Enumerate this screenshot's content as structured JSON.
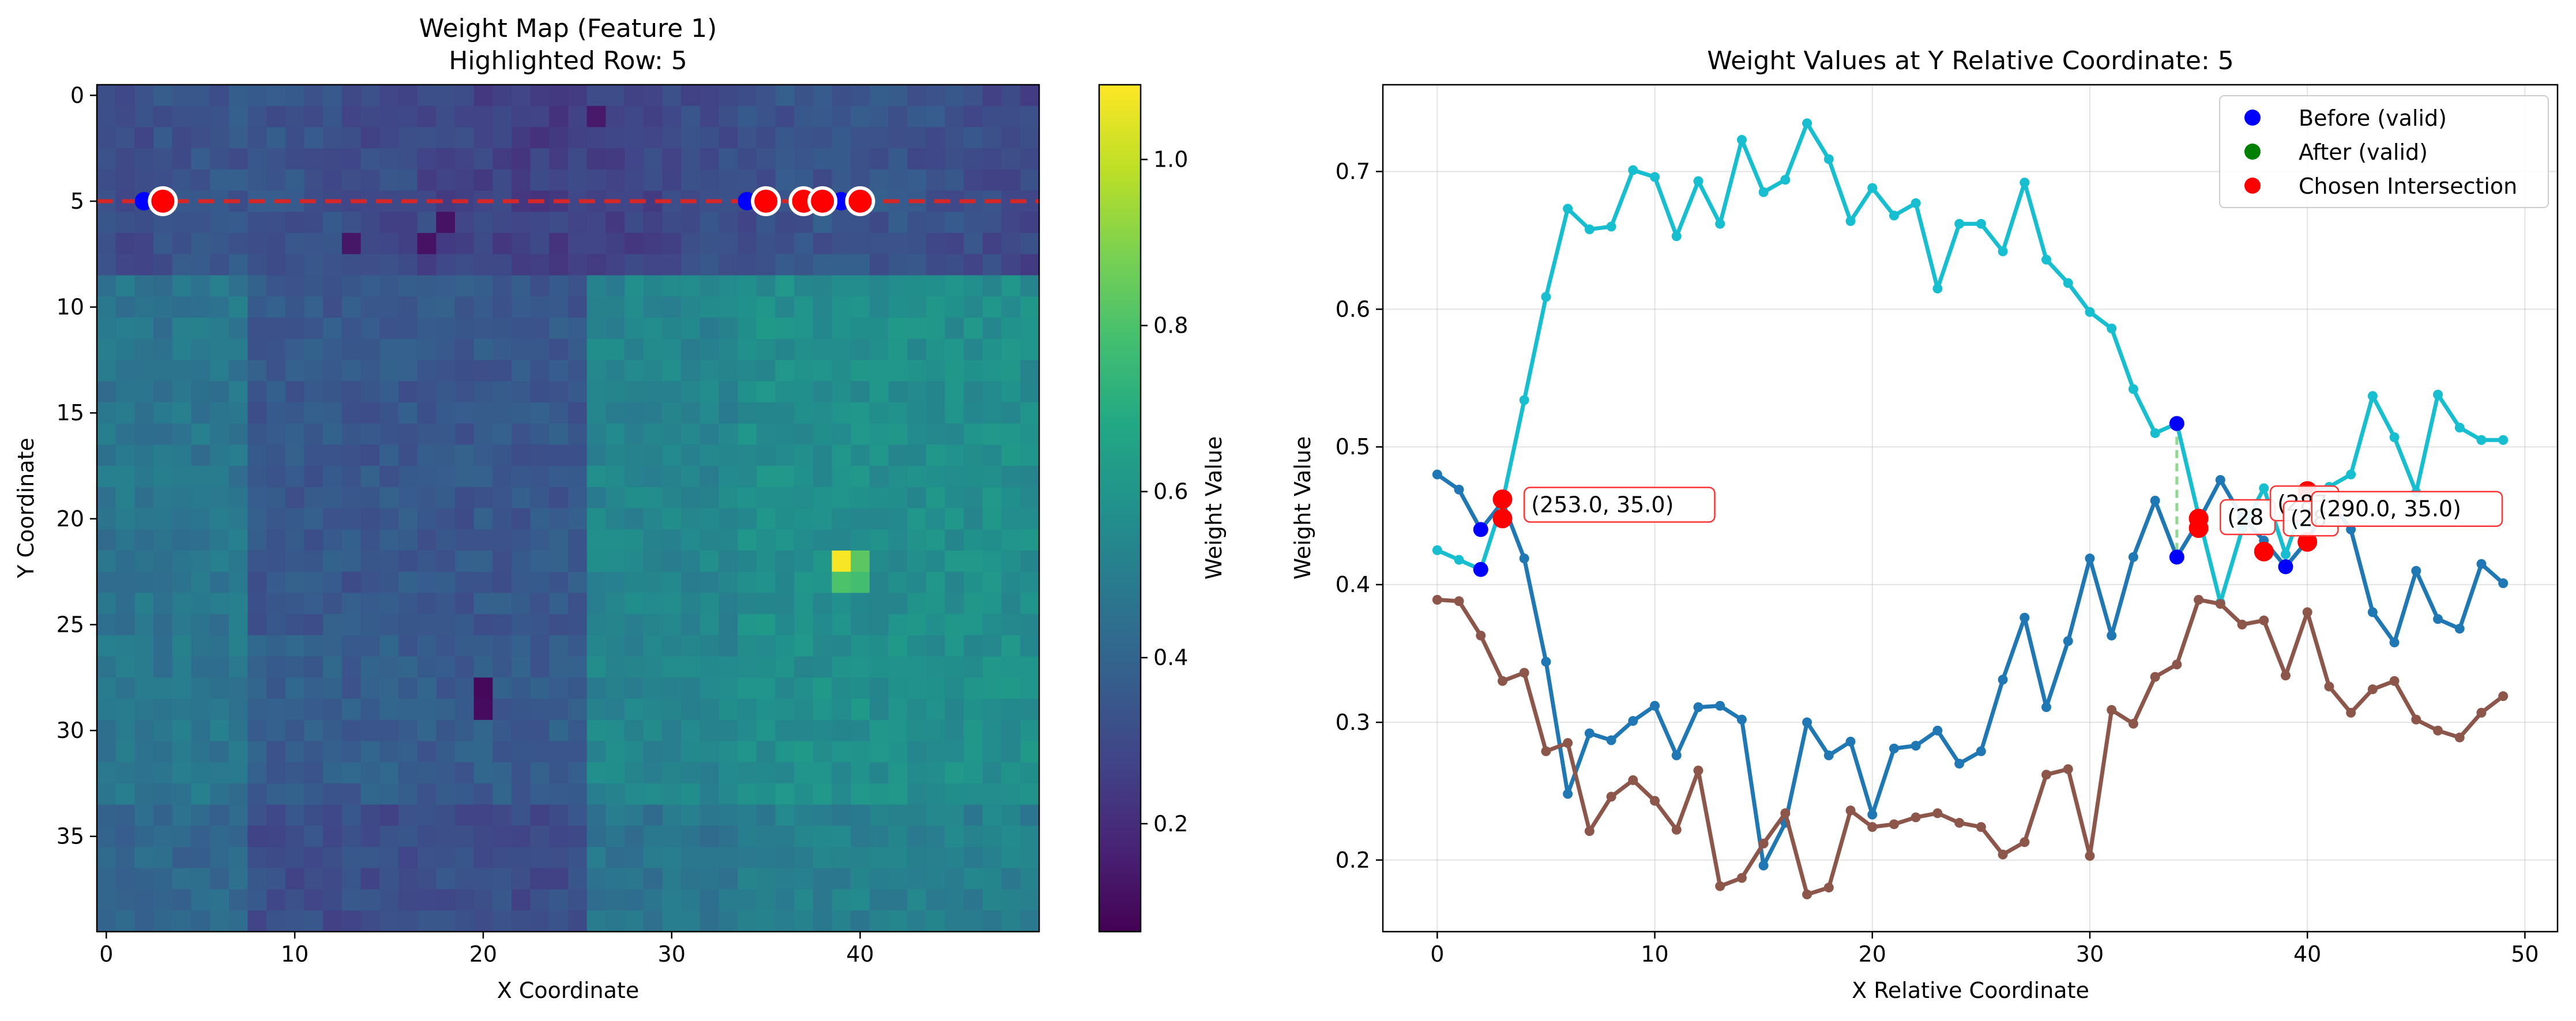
{
  "chart_data": [
    {
      "type": "heatmap",
      "title": "Weight Map (Feature 1)",
      "subtitle": "Highlighted Row: 5",
      "xlabel": "X Coordinate",
      "ylabel": "Y Coordinate",
      "colorbar_label": "Weight Value",
      "colormap": "viridis",
      "xlim": [
        -0.5,
        49.5
      ],
      "ylim": [
        39.5,
        -0.5
      ],
      "xticks": [
        0,
        10,
        20,
        30,
        40
      ],
      "yticks": [
        0,
        5,
        10,
        15,
        20,
        25,
        30,
        35
      ],
      "colorbar_range": [
        0.07,
        1.09
      ],
      "colorbar_ticks": [
        0.2,
        0.4,
        0.6,
        0.8,
        1.0
      ],
      "highlight_row": 5,
      "highlight_line_color": "#d62728",
      "blue_markers_x": [
        2,
        34,
        39
      ],
      "red_markers_x": [
        3,
        35,
        37,
        38,
        40
      ],
      "hot_cells": [
        {
          "x": 39,
          "y": 22,
          "v": 1.08
        },
        {
          "x": 40,
          "y": 22,
          "v": 0.83
        },
        {
          "x": 39,
          "y": 23,
          "v": 0.8
        },
        {
          "x": 40,
          "y": 23,
          "v": 0.78
        },
        {
          "x": 20,
          "y": 28,
          "v": 0.09
        },
        {
          "x": 20,
          "y": 29,
          "v": 0.1
        },
        {
          "x": 18,
          "y": 6,
          "v": 0.12
        },
        {
          "x": 17,
          "y": 7,
          "v": 0.12
        },
        {
          "x": 13,
          "y": 7,
          "v": 0.13
        },
        {
          "x": 26,
          "y": 1,
          "v": 0.14
        }
      ]
    },
    {
      "type": "line",
      "title": "Weight Values at Y Relative Coordinate: 5",
      "xlabel": "X Relative Coordinate",
      "ylabel": "Weight Value",
      "xlim": [
        -2.5,
        51.5
      ],
      "ylim": [
        0.148,
        0.763
      ],
      "xticks": [
        0,
        10,
        20,
        30,
        40,
        50
      ],
      "yticks": [
        0.2,
        0.3,
        0.4,
        0.5,
        0.6,
        0.7
      ],
      "grid": true,
      "legend_position": "top-right",
      "legend": [
        {
          "label": "Before (valid)",
          "color": "#0000ff"
        },
        {
          "label": "After (valid)",
          "color": "#008000"
        },
        {
          "label": "Chosen Intersection",
          "color": "#ff0000"
        }
      ],
      "series": [
        {
          "color": "#1f77b4",
          "x": [
            0,
            1,
            2,
            3,
            4,
            5,
            6,
            7,
            8,
            9,
            10,
            11,
            12,
            13,
            14,
            15,
            16,
            17,
            18,
            19,
            20,
            21,
            22,
            23,
            24,
            25,
            26,
            27,
            28,
            29,
            30,
            31,
            32,
            33,
            34,
            35,
            36,
            37,
            38,
            39,
            40,
            41,
            42,
            43,
            44,
            45,
            46,
            47,
            48,
            49
          ],
          "values": [
            0.48,
            0.469,
            0.44,
            0.46,
            0.419,
            0.344,
            0.248,
            0.292,
            0.287,
            0.301,
            0.312,
            0.276,
            0.311,
            0.312,
            0.302,
            0.196,
            0.227,
            0.3,
            0.276,
            0.286,
            0.233,
            0.281,
            0.283,
            0.294,
            0.27,
            0.279,
            0.331,
            0.376,
            0.311,
            0.359,
            0.419,
            0.363,
            0.42,
            0.461,
            0.42,
            0.446,
            0.476,
            0.449,
            0.432,
            0.413,
            0.432,
            0.461,
            0.44,
            0.38,
            0.358,
            0.41,
            0.375,
            0.368,
            0.415,
            0.401
          ]
        },
        {
          "color": "#17becf",
          "x": [
            0,
            1,
            2,
            3,
            4,
            5,
            6,
            7,
            8,
            9,
            10,
            11,
            12,
            13,
            14,
            15,
            16,
            17,
            18,
            19,
            20,
            21,
            22,
            23,
            24,
            25,
            26,
            27,
            28,
            29,
            30,
            31,
            32,
            33,
            34,
            35,
            36,
            37,
            38,
            39,
            40,
            41,
            42,
            43,
            44,
            45,
            46,
            47,
            48,
            49
          ],
          "values": [
            0.425,
            0.418,
            0.411,
            0.46,
            0.534,
            0.609,
            0.673,
            0.658,
            0.66,
            0.701,
            0.696,
            0.653,
            0.693,
            0.662,
            0.723,
            0.685,
            0.694,
            0.735,
            0.709,
            0.664,
            0.688,
            0.668,
            0.677,
            0.615,
            0.662,
            0.662,
            0.642,
            0.692,
            0.636,
            0.619,
            0.598,
            0.586,
            0.542,
            0.51,
            0.517,
            0.45,
            0.387,
            0.44,
            0.47,
            0.422,
            0.468,
            0.471,
            0.48,
            0.537,
            0.507,
            0.467,
            0.538,
            0.514,
            0.505,
            0.505
          ]
        },
        {
          "color": "#8c564b",
          "x": [
            0,
            1,
            2,
            3,
            4,
            5,
            6,
            7,
            8,
            9,
            10,
            11,
            12,
            13,
            14,
            15,
            16,
            17,
            18,
            19,
            20,
            21,
            22,
            23,
            24,
            25,
            26,
            27,
            28,
            29,
            30,
            31,
            32,
            33,
            34,
            35,
            36,
            37,
            38,
            39,
            40,
            41,
            42,
            43,
            44,
            45,
            46,
            47,
            48,
            49
          ],
          "values": [
            0.389,
            0.388,
            0.363,
            0.33,
            0.336,
            0.279,
            0.285,
            0.221,
            0.246,
            0.258,
            0.243,
            0.222,
            0.265,
            0.181,
            0.187,
            0.212,
            0.234,
            0.175,
            0.18,
            0.236,
            0.224,
            0.226,
            0.231,
            0.234,
            0.227,
            0.224,
            0.204,
            0.213,
            0.262,
            0.266,
            0.203,
            0.309,
            0.299,
            0.333,
            0.342,
            0.389,
            0.386,
            0.371,
            0.374,
            0.334,
            0.38,
            0.326,
            0.307,
            0.324,
            0.33,
            0.302,
            0.294,
            0.289,
            0.307,
            0.319
          ]
        }
      ],
      "before_points": [
        {
          "x": 2,
          "y": 0.44
        },
        {
          "x": 2,
          "y": 0.411
        },
        {
          "x": 34,
          "y": 0.517
        },
        {
          "x": 34,
          "y": 0.42
        },
        {
          "x": 39,
          "y": 0.413
        }
      ],
      "chosen_points": [
        {
          "x": 3,
          "y": 0.462
        },
        {
          "x": 3,
          "y": 0.448
        },
        {
          "x": 35,
          "y": 0.448
        },
        {
          "x": 35,
          "y": 0.441
        },
        {
          "x": 38,
          "y": 0.424
        },
        {
          "x": 40,
          "y": 0.468
        },
        {
          "x": 40,
          "y": 0.431
        }
      ],
      "connector": {
        "x": [
          34,
          34
        ],
        "y": [
          0.517,
          0.42
        ],
        "color": "#90d890"
      },
      "annotations": [
        {
          "text": "(253.0, 35.0)",
          "x": 4,
          "y": 0.458
        },
        {
          "text": "(28",
          "x": 36,
          "y": 0.449
        },
        {
          "text": "(287",
          "x": 38.3,
          "y": 0.459
        },
        {
          "text": "(28",
          "x": 38.9,
          "y": 0.448
        },
        {
          "text": "(290.0, 35.0)",
          "x": 40.2,
          "y": 0.455
        }
      ]
    }
  ]
}
